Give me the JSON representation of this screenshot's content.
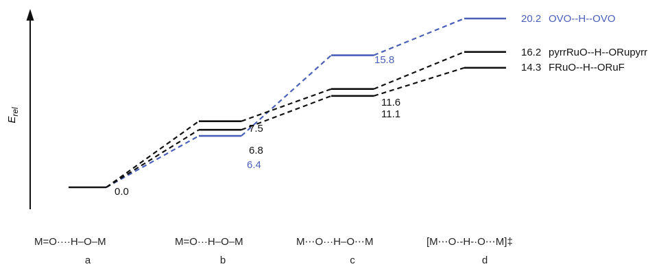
{
  "y_axis": {
    "label": "E",
    "subscript": "rel"
  },
  "colors": {
    "blue": "#4a5fb8",
    "black": "#111111"
  },
  "series": [
    {
      "name": "OVO--H--OVO",
      "color": "#4a5fb8",
      "levels": [
        {
          "stage": "a",
          "energy": 0.0,
          "label": ""
        },
        {
          "stage": "b",
          "energy": 6.4,
          "label": "6.4"
        },
        {
          "stage": "c",
          "energy": 15.8,
          "label": "15.8"
        },
        {
          "stage": "d",
          "energy": 20.2,
          "label": "20.2"
        }
      ]
    },
    {
      "name": "pyrrRuO--H--ORupyrr",
      "color": "#111111",
      "levels": [
        {
          "stage": "a",
          "energy": 0.0,
          "label": ""
        },
        {
          "stage": "b",
          "energy": 7.5,
          "label": "7.5"
        },
        {
          "stage": "c",
          "energy": 11.6,
          "label": "11.6"
        },
        {
          "stage": "d",
          "energy": 16.2,
          "label": "16.2"
        }
      ]
    },
    {
      "name": "FRuO--H--ORuF",
      "color": "#111111",
      "levels": [
        {
          "stage": "a",
          "energy": 0.0,
          "label": "0.0"
        },
        {
          "stage": "b",
          "energy": 6.8,
          "label": "6.8"
        },
        {
          "stage": "c",
          "energy": 11.1,
          "label": "11.1"
        },
        {
          "stage": "d",
          "energy": 14.3,
          "label": "14.3"
        }
      ]
    }
  ],
  "stages": [
    {
      "id": "a",
      "structure": "M=O····H–O–M",
      "label": "a"
    },
    {
      "id": "b",
      "structure": "M=O···H–O–M",
      "label": "b"
    },
    {
      "id": "c",
      "structure": "M⋯O···H–O⋯M",
      "label": "c"
    },
    {
      "id": "d",
      "structure": "[M⋯O·-H-·O⋯M]‡",
      "label": "d"
    }
  ]
}
